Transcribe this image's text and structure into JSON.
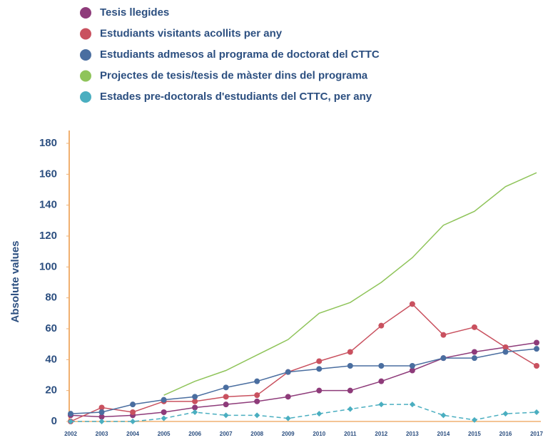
{
  "chart_data": {
    "type": "line",
    "y_label": "Absolute values",
    "x": [
      "2002",
      "2003",
      "2004",
      "2005",
      "2006",
      "2007",
      "2008",
      "2009",
      "2010",
      "2011",
      "2012",
      "2013",
      "2014",
      "2015",
      "2016",
      "2017"
    ],
    "ylim": [
      0,
      180
    ],
    "yticks": [
      0,
      20,
      40,
      60,
      80,
      100,
      120,
      140,
      160,
      180
    ],
    "axis_color": "#f0b070",
    "series": [
      {
        "name": "Tesis llegides",
        "color": "#8e3b7a",
        "marker": "circle",
        "values": [
          4,
          3,
          4,
          6,
          9,
          11,
          13,
          16,
          20,
          20,
          26,
          33,
          41,
          45,
          48,
          51
        ]
      },
      {
        "name": "Estudiants visitants acollits per any",
        "color": "#c9515f",
        "marker": "circle",
        "values": [
          0,
          9,
          6,
          13,
          13,
          16,
          17,
          32,
          39,
          45,
          62,
          76,
          56,
          61,
          48,
          36
        ]
      },
      {
        "name": "Estudiants admesos al programa de doctorat del CTTC",
        "color": "#4a6ea0",
        "marker": "circle",
        "values": [
          5,
          6,
          11,
          14,
          16,
          22,
          26,
          32,
          34,
          36,
          36,
          36,
          41,
          41,
          45,
          47
        ]
      },
      {
        "name": "Projectes de tesis/tesis de màster dins del programa",
        "color": "#8fc45a",
        "marker": "none",
        "values": [
          null,
          null,
          null,
          17,
          26,
          33,
          43,
          53,
          70,
          77,
          90,
          106,
          127,
          136,
          152,
          161
        ]
      },
      {
        "name": "Estades pre-doctorals d'estudiants del CTTC, per any",
        "color": "#4aaec0",
        "marker": "diamond",
        "dash": true,
        "values": [
          0,
          0,
          0,
          2,
          6,
          4,
          4,
          2,
          5,
          8,
          11,
          11,
          4,
          1,
          5,
          6
        ]
      }
    ]
  }
}
